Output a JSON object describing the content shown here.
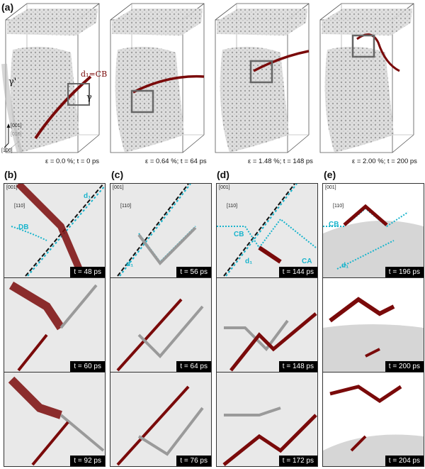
{
  "labels": {
    "a": "(a)",
    "b": "(b)",
    "c": "(c)",
    "d": "(d)",
    "e": "(e)"
  },
  "row_a": {
    "phase_gamma_prime": "γ'",
    "phase_gamma": "γ",
    "dislocation_label": "d₁=CB",
    "axes": {
      "z": "[001]",
      "y": "[010]",
      "x": "[100]"
    },
    "captions": [
      "ε = 0.0 %; t = 0 ps",
      "ε = 0.64 %; t = 64 ps",
      "ε = 1.48 %; t = 148 ps",
      "ε = 2.00 %; t = 200 ps"
    ]
  },
  "axis_small": {
    "z": "[001]",
    "n": "[110]"
  },
  "columns": {
    "b": {
      "times": [
        "t = 48 ps",
        "t = 60 ps",
        "t = 92 ps"
      ],
      "tags": [
        "d₁",
        "DB"
      ]
    },
    "c": {
      "times": [
        "t = 56 ps",
        "t = 64 ps",
        "t = 76 ps"
      ],
      "tags": [
        "d₁"
      ]
    },
    "d": {
      "times": [
        "t = 144 ps",
        "t = 148 ps",
        "t = 172 ps"
      ],
      "tags": [
        "CB",
        "d₁",
        "CA"
      ]
    },
    "e": {
      "times": [
        "t = 196 ps",
        "t = 200 ps",
        "t = 204 ps"
      ],
      "tags": [
        "CB",
        "d₁"
      ]
    }
  },
  "colors": {
    "dislocation": "#7a0a0a",
    "tag": "#19b4cc",
    "matrix": "#e9e9e9"
  }
}
